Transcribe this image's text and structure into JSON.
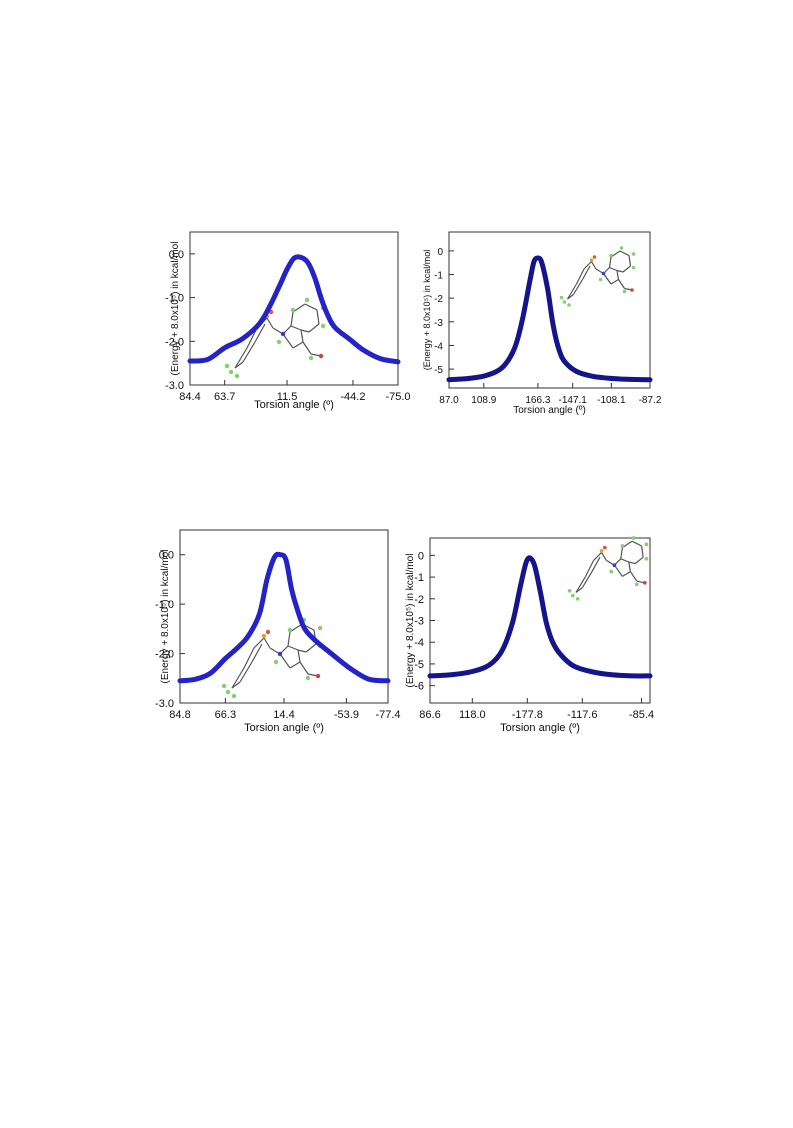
{
  "chart_data": [
    {
      "type": "line",
      "title": "",
      "xlabel": "Torsion angle (º)",
      "ylabel": "(Energy + 8.0x10⁵) in kcal/mol",
      "xticks": [
        "84.4",
        "63.7",
        "11.5",
        "-44.2",
        "-75.0"
      ],
      "yticks": [
        "0.0",
        "-1.0",
        "-2.0",
        "-3.0"
      ],
      "ylim": [
        -3.0,
        0.5
      ],
      "grid": false,
      "series": [
        {
          "color": "#2323c8",
          "x": [
            0,
            0.5,
            1,
            1.5,
            2,
            2.3,
            2.6,
            2.8,
            3.0,
            3.2,
            3.4,
            3.6,
            3.8,
            4.0,
            4.2,
            4.6,
            5.0,
            5.5,
            6.0
          ],
          "y": [
            -2.45,
            -2.42,
            -2.15,
            -1.95,
            -1.6,
            -1.2,
            -0.7,
            -0.35,
            -0.1,
            -0.08,
            -0.2,
            -0.55,
            -1.05,
            -1.45,
            -1.7,
            -1.95,
            -2.2,
            -2.4,
            -2.47
          ]
        }
      ]
    },
    {
      "type": "line",
      "title": "",
      "xlabel": "Torsion angle (º)",
      "ylabel": "(Energy + 8.0x10⁵) in kcal/mol",
      "xticks": [
        "87.0",
        "108.9",
        "166.3",
        "-147.1",
        "-108.1",
        "-87.2"
      ],
      "yticks": [
        "0",
        "-1",
        "-2",
        "-3",
        "-4",
        "-5"
      ],
      "ylim": [
        -5.8,
        0.8
      ],
      "grid": false,
      "series": [
        {
          "color": "#14148c",
          "x": [
            0,
            0.5,
            1,
            1.4,
            1.7,
            1.9,
            2.1,
            2.2,
            2.3,
            2.4,
            2.55,
            2.7,
            2.85,
            3.0,
            3.3,
            3.7,
            4.1,
            4.6,
            5.2
          ],
          "y": [
            -5.45,
            -5.4,
            -5.25,
            -4.9,
            -4.1,
            -2.9,
            -1.2,
            -0.45,
            -0.3,
            -0.5,
            -1.6,
            -3.2,
            -4.2,
            -4.7,
            -5.1,
            -5.3,
            -5.38,
            -5.43,
            -5.45
          ]
        }
      ]
    },
    {
      "type": "line",
      "title": "",
      "xlabel": "Torsion angle (º)",
      "ylabel": "(Energy + 8.0x10⁵) in kcal/mol",
      "xticks": [
        "84.8",
        "66.3",
        "14.4",
        "-53.9",
        "-77.4"
      ],
      "yticks": [
        "0.0",
        "-1.0",
        "-2.0",
        "-3.0"
      ],
      "ylim": [
        -3.0,
        0.5
      ],
      "grid": false,
      "series": [
        {
          "color": "#2323c8",
          "x": [
            0,
            0.4,
            0.8,
            1.2,
            1.5,
            1.8,
            2.1,
            2.3,
            2.5,
            2.65,
            2.8,
            2.95,
            3.1,
            3.3,
            3.6,
            4.0,
            4.5,
            5.0,
            5.5
          ],
          "y": [
            -2.55,
            -2.52,
            -2.4,
            -2.1,
            -1.9,
            -1.65,
            -1.2,
            -0.5,
            -0.05,
            0.0,
            -0.1,
            -0.7,
            -1.1,
            -1.5,
            -1.75,
            -2.0,
            -2.3,
            -2.52,
            -2.55
          ]
        }
      ]
    },
    {
      "type": "line",
      "title": "",
      "xlabel": "Torsion angle (º)",
      "ylabel": "(Energy + 8.0x10⁵) in kcal/mol",
      "xticks": [
        "86.6",
        "118.0",
        "-177.8",
        "-117.6",
        "-85.4"
      ],
      "yticks": [
        "0",
        "-1",
        "-2",
        "-3",
        "-4",
        "-5",
        "-6"
      ],
      "ylim": [
        -6.8,
        0.8
      ],
      "grid": false,
      "series": [
        {
          "color": "#14148c",
          "x": [
            0,
            0.5,
            1.0,
            1.4,
            1.7,
            1.95,
            2.15,
            2.3,
            2.45,
            2.6,
            2.75,
            2.9,
            3.1,
            3.4,
            3.8,
            4.3,
            4.8,
            5.2
          ],
          "y": [
            -5.55,
            -5.5,
            -5.35,
            -5.05,
            -4.4,
            -3.1,
            -1.3,
            -0.2,
            -0.35,
            -1.6,
            -3.1,
            -4.0,
            -4.6,
            -5.1,
            -5.35,
            -5.5,
            -5.55,
            -5.55
          ]
        }
      ]
    }
  ]
}
